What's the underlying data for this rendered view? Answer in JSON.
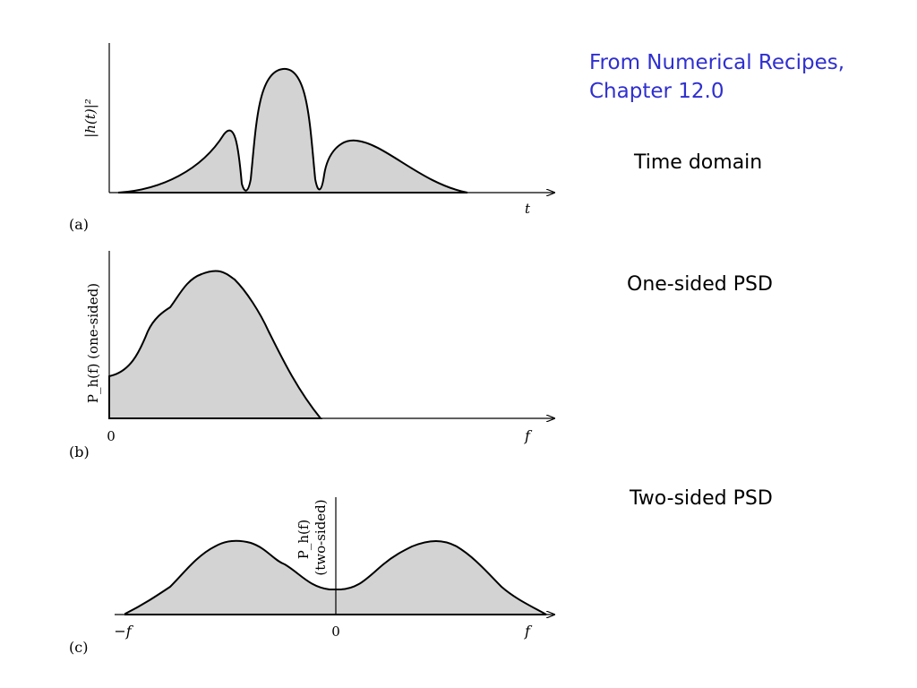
{
  "source": {
    "line1": "From Numerical Recipes,",
    "line2": "Chapter 12.0"
  },
  "panels": [
    {
      "caption": "Time domain",
      "panel_label": "(a)",
      "ylabel": "|h(t)|²",
      "xlabel": "t"
    },
    {
      "caption": "One-sided PSD",
      "panel_label": "(b)",
      "ylabel": "P_h(f) (one-sided)",
      "xlabel": "f",
      "origin_label": "0"
    },
    {
      "caption": "Two-sided PSD",
      "panel_label": "(c)",
      "ylabel_line1": "P_h(f)",
      "ylabel_line2": "(two-sided)",
      "xlabel_left": "−f",
      "xlabel_right": "f",
      "origin_label": "0"
    }
  ],
  "colors": {
    "fill": "#d3d3d3",
    "stroke": "#000000",
    "source_text": "#2f2fd0"
  }
}
